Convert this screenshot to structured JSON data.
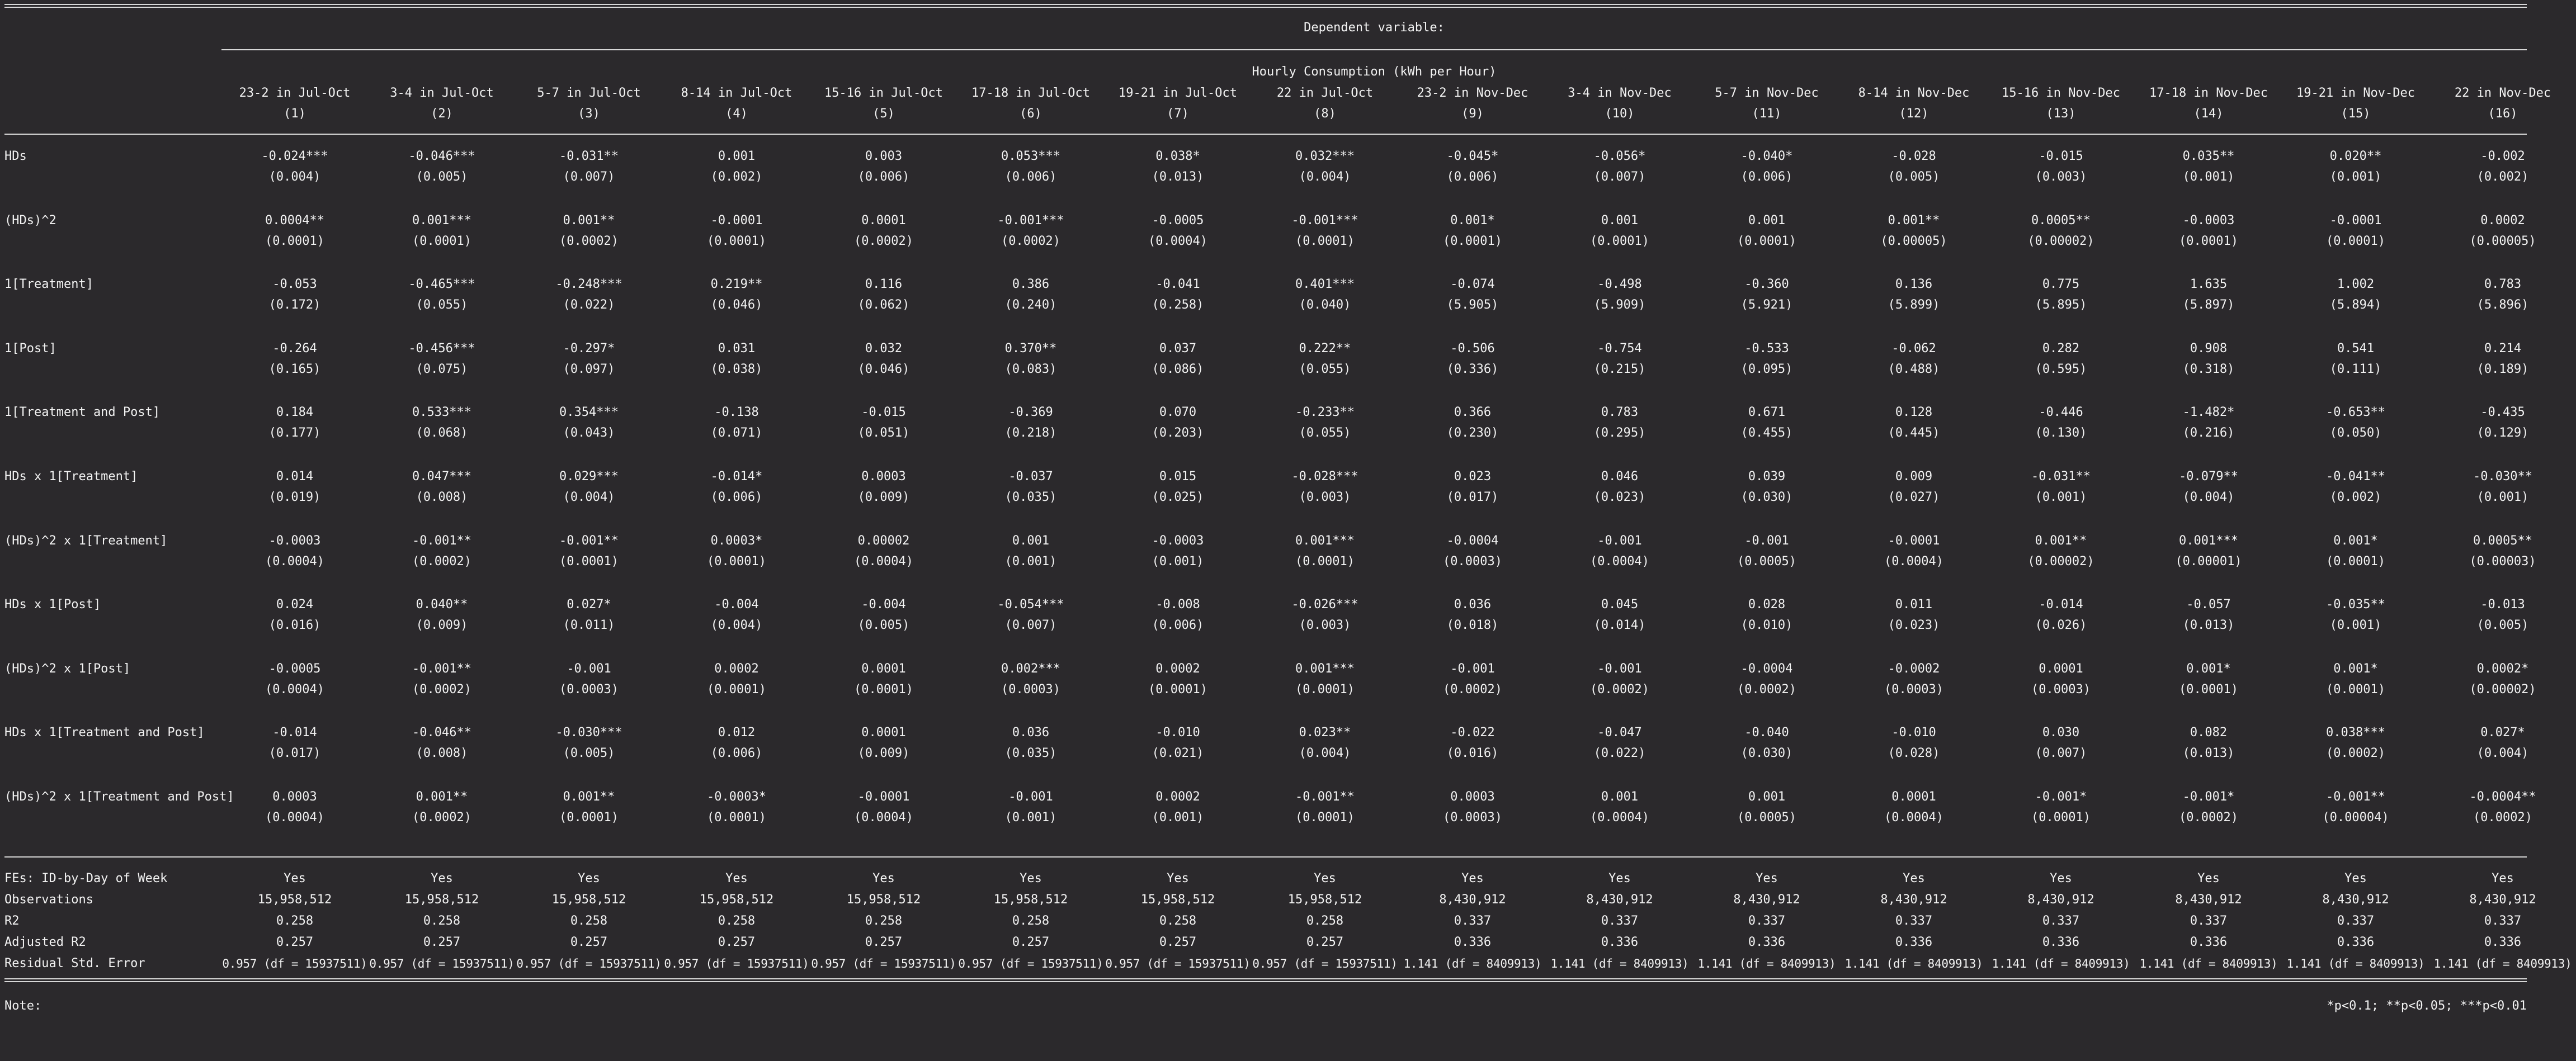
{
  "header": {
    "dependent_variable": "Dependent variable:",
    "outcome": "Hourly Consumption (kWh per Hour)"
  },
  "columns": [
    {
      "name": "23-2 in Jul-Oct",
      "num": "(1)"
    },
    {
      "name": "3-4 in Jul-Oct",
      "num": "(2)"
    },
    {
      "name": "5-7 in Jul-Oct",
      "num": "(3)"
    },
    {
      "name": "8-14 in Jul-Oct",
      "num": "(4)"
    },
    {
      "name": "15-16 in Jul-Oct",
      "num": "(5)"
    },
    {
      "name": "17-18 in Jul-Oct",
      "num": "(6)"
    },
    {
      "name": "19-21 in Jul-Oct",
      "num": "(7)"
    },
    {
      "name": "22 in Jul-Oct",
      "num": "(8)"
    },
    {
      "name": "23-2 in Nov-Dec",
      "num": "(9)"
    },
    {
      "name": "3-4 in Nov-Dec",
      "num": "(10)"
    },
    {
      "name": "5-7 in Nov-Dec",
      "num": "(11)"
    },
    {
      "name": "8-14 in Nov-Dec",
      "num": "(12)"
    },
    {
      "name": "15-16 in Nov-Dec",
      "num": "(13)"
    },
    {
      "name": "17-18 in Nov-Dec",
      "num": "(14)"
    },
    {
      "name": "19-21 in Nov-Dec",
      "num": "(15)"
    },
    {
      "name": "22 in Nov-Dec",
      "num": "(16)"
    }
  ],
  "coefficients": [
    {
      "label": "HDs",
      "est": [
        "-0.024***",
        "-0.046***",
        "-0.031**",
        "0.001",
        "0.003",
        "0.053***",
        "0.038*",
        "0.032***",
        "-0.045*",
        "-0.056*",
        "-0.040*",
        "-0.028",
        "-0.015",
        "0.035**",
        "0.020**",
        "-0.002"
      ],
      "se": [
        "(0.004)",
        "(0.005)",
        "(0.007)",
        "(0.002)",
        "(0.006)",
        "(0.006)",
        "(0.013)",
        "(0.004)",
        "(0.006)",
        "(0.007)",
        "(0.006)",
        "(0.005)",
        "(0.003)",
        "(0.001)",
        "(0.001)",
        "(0.002)"
      ]
    },
    {
      "label": "(HDs)^2",
      "est": [
        "0.0004**",
        "0.001***",
        "0.001**",
        "-0.0001",
        "0.0001",
        "-0.001***",
        "-0.0005",
        "-0.001***",
        "0.001*",
        "0.001",
        "0.001",
        "0.001**",
        "0.0005**",
        "-0.0003",
        "-0.0001",
        "0.0002"
      ],
      "se": [
        "(0.0001)",
        "(0.0001)",
        "(0.0002)",
        "(0.0001)",
        "(0.0002)",
        "(0.0002)",
        "(0.0004)",
        "(0.0001)",
        "(0.0001)",
        "(0.0001)",
        "(0.0001)",
        "(0.00005)",
        "(0.00002)",
        "(0.0001)",
        "(0.0001)",
        "(0.00005)"
      ]
    },
    {
      "label": "1[Treatment]",
      "est": [
        "-0.053",
        "-0.465***",
        "-0.248***",
        "0.219**",
        "0.116",
        "0.386",
        "-0.041",
        "0.401***",
        "-0.074",
        "-0.498",
        "-0.360",
        "0.136",
        "0.775",
        "1.635",
        "1.002",
        "0.783"
      ],
      "se": [
        "(0.172)",
        "(0.055)",
        "(0.022)",
        "(0.046)",
        "(0.062)",
        "(0.240)",
        "(0.258)",
        "(0.040)",
        "(5.905)",
        "(5.909)",
        "(5.921)",
        "(5.899)",
        "(5.895)",
        "(5.897)",
        "(5.894)",
        "(5.896)"
      ]
    },
    {
      "label": "1[Post]",
      "est": [
        "-0.264",
        "-0.456***",
        "-0.297*",
        "0.031",
        "0.032",
        "0.370**",
        "0.037",
        "0.222**",
        "-0.506",
        "-0.754",
        "-0.533",
        "-0.062",
        "0.282",
        "0.908",
        "0.541",
        "0.214"
      ],
      "se": [
        "(0.165)",
        "(0.075)",
        "(0.097)",
        "(0.038)",
        "(0.046)",
        "(0.083)",
        "(0.086)",
        "(0.055)",
        "(0.336)",
        "(0.215)",
        "(0.095)",
        "(0.488)",
        "(0.595)",
        "(0.318)",
        "(0.111)",
        "(0.189)"
      ]
    },
    {
      "label": "1[Treatment and Post]",
      "est": [
        "0.184",
        "0.533***",
        "0.354***",
        "-0.138",
        "-0.015",
        "-0.369",
        "0.070",
        "-0.233**",
        "0.366",
        "0.783",
        "0.671",
        "0.128",
        "-0.446",
        "-1.482*",
        "-0.653**",
        "-0.435"
      ],
      "se": [
        "(0.177)",
        "(0.068)",
        "(0.043)",
        "(0.071)",
        "(0.051)",
        "(0.218)",
        "(0.203)",
        "(0.055)",
        "(0.230)",
        "(0.295)",
        "(0.455)",
        "(0.445)",
        "(0.130)",
        "(0.216)",
        "(0.050)",
        "(0.129)"
      ]
    },
    {
      "label": "HDs x 1[Treatment]",
      "est": [
        "0.014",
        "0.047***",
        "0.029***",
        "-0.014*",
        "0.0003",
        "-0.037",
        "0.015",
        "-0.028***",
        "0.023",
        "0.046",
        "0.039",
        "0.009",
        "-0.031**",
        "-0.079**",
        "-0.041**",
        "-0.030**"
      ],
      "se": [
        "(0.019)",
        "(0.008)",
        "(0.004)",
        "(0.006)",
        "(0.009)",
        "(0.035)",
        "(0.025)",
        "(0.003)",
        "(0.017)",
        "(0.023)",
        "(0.030)",
        "(0.027)",
        "(0.001)",
        "(0.004)",
        "(0.002)",
        "(0.001)"
      ]
    },
    {
      "label": "(HDs)^2 x 1[Treatment]",
      "est": [
        "-0.0003",
        "-0.001**",
        "-0.001**",
        "0.0003*",
        "0.00002",
        "0.001",
        "-0.0003",
        "0.001***",
        "-0.0004",
        "-0.001",
        "-0.001",
        "-0.0001",
        "0.001**",
        "0.001***",
        "0.001*",
        "0.0005**"
      ],
      "se": [
        "(0.0004)",
        "(0.0002)",
        "(0.0001)",
        "(0.0001)",
        "(0.0004)",
        "(0.001)",
        "(0.001)",
        "(0.0001)",
        "(0.0003)",
        "(0.0004)",
        "(0.0005)",
        "(0.0004)",
        "(0.00002)",
        "(0.00001)",
        "(0.0001)",
        "(0.00003)"
      ]
    },
    {
      "label": "HDs x 1[Post]",
      "est": [
        "0.024",
        "0.040**",
        "0.027*",
        "-0.004",
        "-0.004",
        "-0.054***",
        "-0.008",
        "-0.026***",
        "0.036",
        "0.045",
        "0.028",
        "0.011",
        "-0.014",
        "-0.057",
        "-0.035**",
        "-0.013"
      ],
      "se": [
        "(0.016)",
        "(0.009)",
        "(0.011)",
        "(0.004)",
        "(0.005)",
        "(0.007)",
        "(0.006)",
        "(0.003)",
        "(0.018)",
        "(0.014)",
        "(0.010)",
        "(0.023)",
        "(0.026)",
        "(0.013)",
        "(0.001)",
        "(0.005)"
      ]
    },
    {
      "label": "(HDs)^2 x 1[Post]",
      "est": [
        "-0.0005",
        "-0.001**",
        "-0.001",
        "0.0002",
        "0.0001",
        "0.002***",
        "0.0002",
        "0.001***",
        "-0.001",
        "-0.001",
        "-0.0004",
        "-0.0002",
        "0.0001",
        "0.001*",
        "0.001*",
        "0.0002*"
      ],
      "se": [
        "(0.0004)",
        "(0.0002)",
        "(0.0003)",
        "(0.0001)",
        "(0.0001)",
        "(0.0003)",
        "(0.0001)",
        "(0.0001)",
        "(0.0002)",
        "(0.0002)",
        "(0.0002)",
        "(0.0003)",
        "(0.0003)",
        "(0.0001)",
        "(0.0001)",
        "(0.00002)"
      ]
    },
    {
      "label": "HDs x 1[Treatment and Post]",
      "est": [
        "-0.014",
        "-0.046**",
        "-0.030***",
        "0.012",
        "0.0001",
        "0.036",
        "-0.010",
        "0.023**",
        "-0.022",
        "-0.047",
        "-0.040",
        "-0.010",
        "0.030",
        "0.082",
        "0.038***",
        "0.027*"
      ],
      "se": [
        "(0.017)",
        "(0.008)",
        "(0.005)",
        "(0.006)",
        "(0.009)",
        "(0.035)",
        "(0.021)",
        "(0.004)",
        "(0.016)",
        "(0.022)",
        "(0.030)",
        "(0.028)",
        "(0.007)",
        "(0.013)",
        "(0.0002)",
        "(0.004)"
      ]
    },
    {
      "label": "(HDs)^2 x 1[Treatment and Post]",
      "est": [
        "0.0003",
        "0.001**",
        "0.001**",
        "-0.0003*",
        "-0.0001",
        "-0.001",
        "0.0002",
        "-0.001**",
        "0.0003",
        "0.001",
        "0.001",
        "0.0001",
        "-0.001*",
        "-0.001*",
        "-0.001**",
        "-0.0004**"
      ],
      "se": [
        "(0.0004)",
        "(0.0002)",
        "(0.0001)",
        "(0.0001)",
        "(0.0004)",
        "(0.001)",
        "(0.001)",
        "(0.0001)",
        "(0.0003)",
        "(0.0004)",
        "(0.0005)",
        "(0.0004)",
        "(0.0001)",
        "(0.0002)",
        "(0.00004)",
        "(0.0002)"
      ]
    }
  ],
  "stats": [
    {
      "label": "FEs: ID-by-Day of Week",
      "values": [
        "Yes",
        "Yes",
        "Yes",
        "Yes",
        "Yes",
        "Yes",
        "Yes",
        "Yes",
        "Yes",
        "Yes",
        "Yes",
        "Yes",
        "Yes",
        "Yes",
        "Yes",
        "Yes"
      ]
    },
    {
      "label": "Observations",
      "values": [
        "15,958,512",
        "15,958,512",
        "15,958,512",
        "15,958,512",
        "15,958,512",
        "15,958,512",
        "15,958,512",
        "15,958,512",
        "8,430,912",
        "8,430,912",
        "8,430,912",
        "8,430,912",
        "8,430,912",
        "8,430,912",
        "8,430,912",
        "8,430,912"
      ]
    },
    {
      "label": "R2",
      "values": [
        "0.258",
        "0.258",
        "0.258",
        "0.258",
        "0.258",
        "0.258",
        "0.258",
        "0.258",
        "0.337",
        "0.337",
        "0.337",
        "0.337",
        "0.337",
        "0.337",
        "0.337",
        "0.337"
      ]
    },
    {
      "label": "Adjusted R2",
      "values": [
        "0.257",
        "0.257",
        "0.257",
        "0.257",
        "0.257",
        "0.257",
        "0.257",
        "0.257",
        "0.336",
        "0.336",
        "0.336",
        "0.336",
        "0.336",
        "0.336",
        "0.336",
        "0.336"
      ]
    }
  ],
  "rse": {
    "label": "Residual Std. Error",
    "values": [
      "0.957 (df = 15937511)",
      "0.957 (df = 15937511)",
      "0.957 (df = 15937511)",
      "0.957 (df = 15937511)",
      "0.957 (df = 15937511)",
      "0.957 (df = 15937511)",
      "0.957 (df = 15937511)",
      "0.957 (df = 15937511)",
      "1.141 (df = 8409913)",
      "1.141 (df = 8409913)",
      "1.141 (df = 8409913)",
      "1.141 (df = 8409913)",
      "1.141 (df = 8409913)",
      "1.141 (df = 8409913)",
      "1.141 (df = 8409913)",
      "1.141 (df = 8409913)"
    ]
  },
  "note": {
    "label": "Note:",
    "text": "*p<0.1; **p<0.05; ***p<0.01"
  }
}
